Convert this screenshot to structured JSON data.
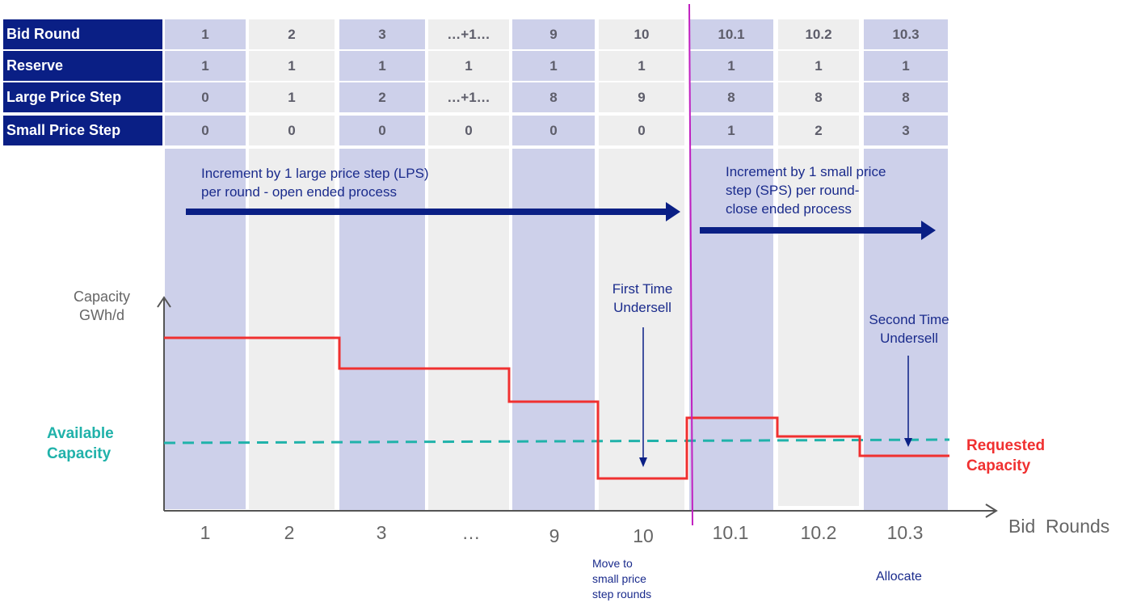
{
  "table": {
    "row_headers": [
      "Bid Round",
      "Reserve",
      "Large Price Step",
      "Small Price Step"
    ],
    "rows": [
      [
        "1",
        "2",
        "3",
        "…+1…",
        "9",
        "10",
        "10.1",
        "10.2",
        "10.3"
      ],
      [
        "1",
        "1",
        "1",
        "1",
        "1",
        "1",
        "1",
        "1",
        "1"
      ],
      [
        "0",
        "1",
        "2",
        "…+1…",
        "8",
        "9",
        "8",
        "8",
        "8"
      ],
      [
        "0",
        "0",
        "0",
        "0",
        "0",
        "0",
        "1",
        "2",
        "3"
      ]
    ]
  },
  "annotations": {
    "lps_text_line1": "Increment by 1 large price step (LPS)",
    "lps_text_line2": "per round - open ended process",
    "sps_text_line1": "Increment by 1 small price",
    "sps_text_line2": "step (SPS) per round-",
    "sps_text_line3": "close ended process",
    "first_undersell_line1": "First Time",
    "first_undersell_line2": "Undersell",
    "second_undersell_line1": "Second Time",
    "second_undersell_line2": "Undersell",
    "move_line1": "Move to",
    "move_line2": "small price",
    "move_line3": "step rounds",
    "allocate": "Allocate"
  },
  "axes": {
    "y_label_line1": "Capacity",
    "y_label_line2": "GWh/d",
    "x_label": "Bid  Rounds",
    "x_ticks": [
      "1",
      "2",
      "3",
      "…",
      "9",
      "10",
      "10.1",
      "10.2",
      "10.3"
    ]
  },
  "legend": {
    "available_line1": "Available",
    "available_line2": "Capacity",
    "requested_line1": "Requested",
    "requested_line2": "Capacity"
  },
  "colors": {
    "header_bg": "#0a1f85",
    "col_blue": "#cdd0ea",
    "col_grey": "#eeeeee",
    "requested": "#f03030",
    "available": "#20b2aa",
    "divider": "#c020c0",
    "arrow": "#0a1f85"
  }
}
